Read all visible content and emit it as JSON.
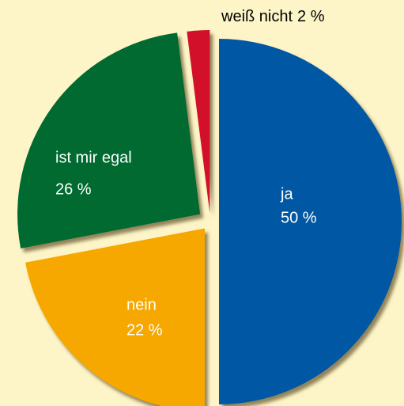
{
  "chart_data": {
    "type": "pie",
    "categories": [
      "ja",
      "nein",
      "ist mir egal",
      "weiß nicht"
    ],
    "values": [
      50,
      22,
      26,
      2
    ],
    "value_labels": [
      "50 %",
      "22 %",
      "26 %",
      "2 %"
    ],
    "colors": [
      "#0057a3",
      "#f6a800",
      "#006a31",
      "#d3102a"
    ]
  }
}
